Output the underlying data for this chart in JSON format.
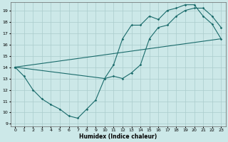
{
  "xlabel": "Humidex (Indice chaleur)",
  "xlim": [
    -0.5,
    23.5
  ],
  "ylim": [
    8.8,
    19.7
  ],
  "yticks": [
    9,
    10,
    11,
    12,
    13,
    14,
    15,
    16,
    17,
    18,
    19
  ],
  "xticks": [
    0,
    1,
    2,
    3,
    4,
    5,
    6,
    7,
    8,
    9,
    10,
    11,
    12,
    13,
    14,
    15,
    16,
    17,
    18,
    19,
    20,
    21,
    22,
    23
  ],
  "background_color": "#cce8e8",
  "grid_color": "#aacccc",
  "line_color": "#1a6b6b",
  "line1_x": [
    0,
    1,
    2,
    3,
    4,
    5,
    6,
    7,
    8,
    9,
    10,
    11,
    12,
    13,
    14,
    15,
    16,
    17,
    18,
    19,
    20,
    21,
    22,
    23
  ],
  "line1_y": [
    14,
    13.2,
    12.0,
    11.2,
    10.7,
    10.3,
    9.7,
    9.5,
    10.3,
    11.1,
    13.0,
    13.2,
    13.0,
    13.5,
    14.2,
    16.5,
    17.5,
    17.7,
    18.5,
    19.0,
    19.2,
    19.2,
    18.5,
    17.5
  ],
  "line2_x": [
    0,
    10,
    11,
    12,
    13,
    14,
    15,
    16,
    17,
    18,
    19,
    20,
    21,
    22,
    23
  ],
  "line2_y": [
    14,
    13.0,
    14.2,
    16.5,
    17.7,
    17.7,
    18.5,
    18.2,
    19.0,
    19.2,
    19.5,
    19.5,
    18.5,
    17.8,
    16.5
  ],
  "line3_x": [
    0,
    23
  ],
  "line3_y": [
    14,
    16.5
  ]
}
